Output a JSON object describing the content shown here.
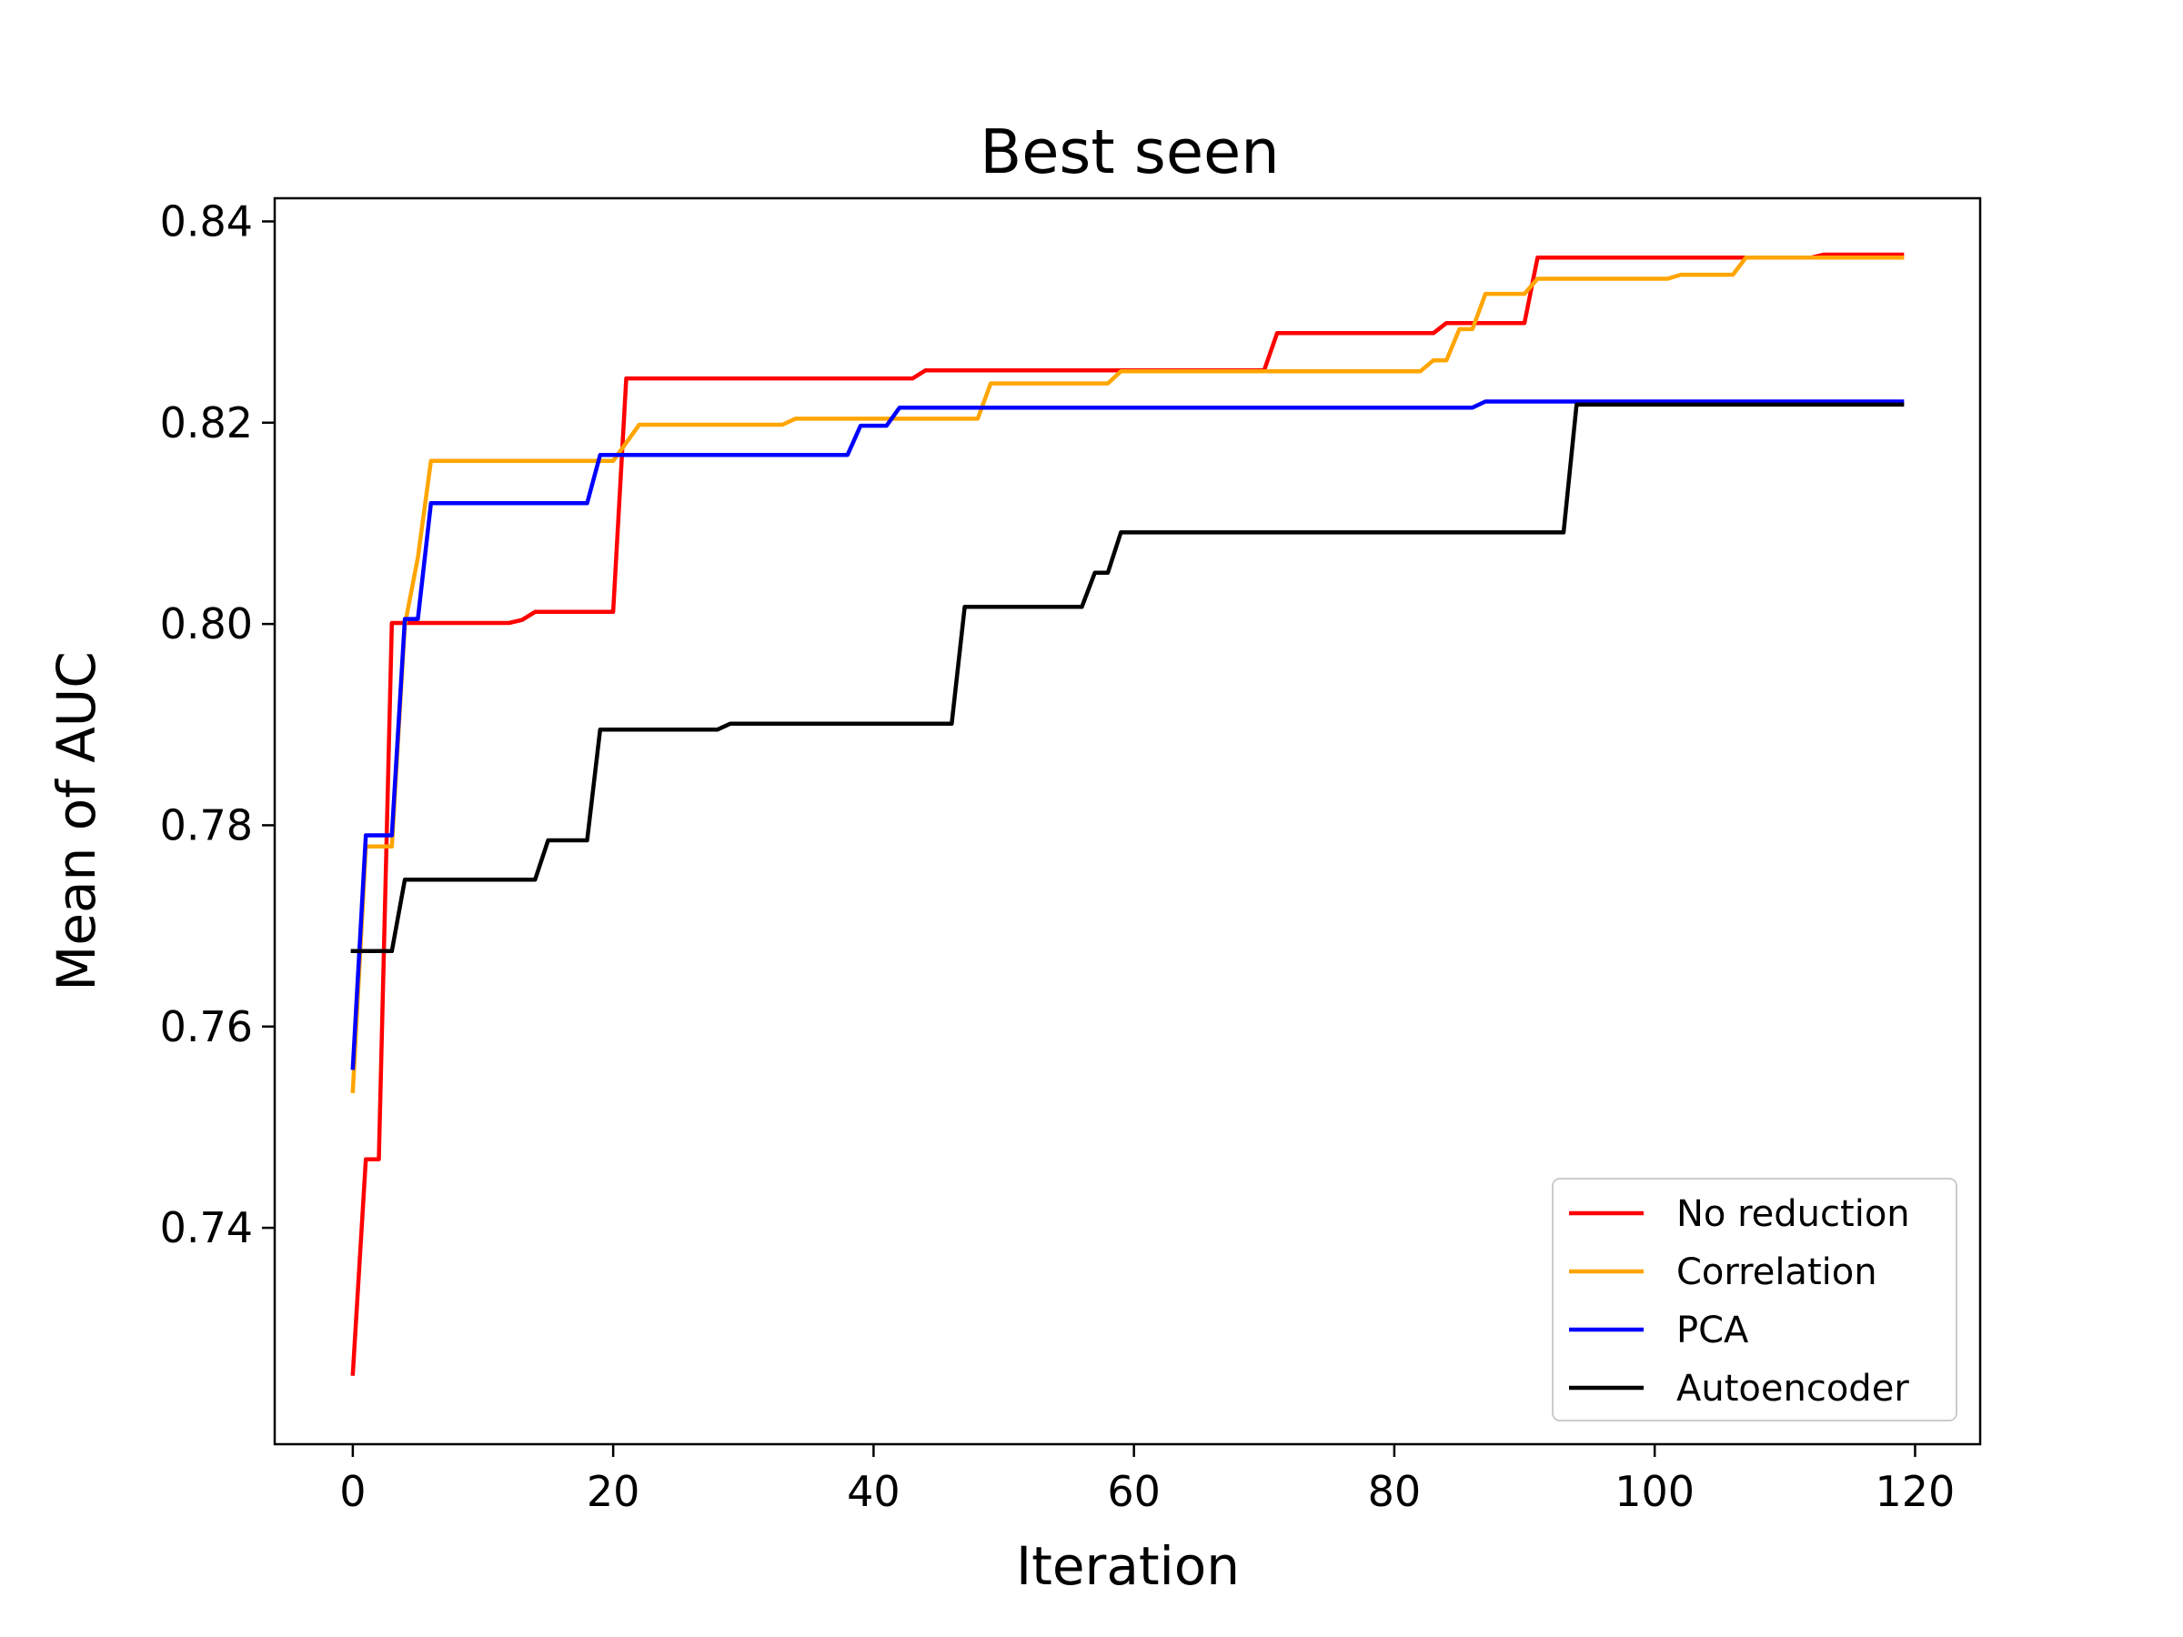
{
  "chart_data": {
    "type": "line",
    "title": "Best seen",
    "xlabel": "Iteration",
    "ylabel": "Mean of AUC",
    "xlim": [
      -6,
      125
    ],
    "ylim": [
      0.7185,
      0.8423
    ],
    "xticks": [
      0,
      20,
      40,
      60,
      80,
      100,
      120
    ],
    "yticks": [
      0.74,
      0.76,
      0.78,
      0.8,
      0.82,
      0.84
    ],
    "ytick_labels": [
      "0.74",
      "0.76",
      "0.78",
      "0.80",
      "0.82",
      "0.84"
    ],
    "grid": false,
    "legend_position": "lower-right",
    "series": [
      {
        "name": "No reduction",
        "color": "#ff0000",
        "points": [
          [
            0,
            0.7255
          ],
          [
            1,
            0.7468
          ],
          [
            2,
            0.7468
          ],
          [
            3,
            0.8001
          ],
          [
            12,
            0.8001
          ],
          [
            13,
            0.8004
          ],
          [
            14,
            0.8012
          ],
          [
            20,
            0.8012
          ],
          [
            21,
            0.8244
          ],
          [
            43,
            0.8244
          ],
          [
            44,
            0.8252
          ],
          [
            70,
            0.8252
          ],
          [
            71,
            0.8289
          ],
          [
            83,
            0.8289
          ],
          [
            84,
            0.8299
          ],
          [
            90,
            0.8299
          ],
          [
            91,
            0.8364
          ],
          [
            112,
            0.8364
          ],
          [
            113,
            0.8367
          ],
          [
            119,
            0.8367
          ]
        ]
      },
      {
        "name": "Correlation",
        "color": "#ffa500",
        "points": [
          [
            0,
            0.7536
          ],
          [
            1,
            0.7779
          ],
          [
            3,
            0.7779
          ],
          [
            4,
            0.7999
          ],
          [
            5,
            0.8066
          ],
          [
            6,
            0.8162
          ],
          [
            20,
            0.8162
          ],
          [
            22,
            0.8198
          ],
          [
            33,
            0.8198
          ],
          [
            34,
            0.8204
          ],
          [
            48,
            0.8204
          ],
          [
            49,
            0.8239
          ],
          [
            58,
            0.8239
          ],
          [
            59,
            0.8251
          ],
          [
            82,
            0.8251
          ],
          [
            83,
            0.8262
          ],
          [
            84,
            0.8262
          ],
          [
            85,
            0.8293
          ],
          [
            86,
            0.8293
          ],
          [
            87,
            0.8328
          ],
          [
            90,
            0.8328
          ],
          [
            91,
            0.8343
          ],
          [
            101,
            0.8343
          ],
          [
            102,
            0.8347
          ],
          [
            106,
            0.8347
          ],
          [
            107,
            0.8364
          ],
          [
            119,
            0.8364
          ]
        ]
      },
      {
        "name": "PCA",
        "color": "#0000ff",
        "points": [
          [
            0,
            0.7559
          ],
          [
            1,
            0.779
          ],
          [
            3,
            0.779
          ],
          [
            4,
            0.8005
          ],
          [
            5,
            0.8005
          ],
          [
            6,
            0.812
          ],
          [
            18,
            0.812
          ],
          [
            19,
            0.8168
          ],
          [
            38,
            0.8168
          ],
          [
            39,
            0.8197
          ],
          [
            41,
            0.8197
          ],
          [
            42,
            0.8215
          ],
          [
            86,
            0.8215
          ],
          [
            87,
            0.8221
          ],
          [
            119,
            0.8221
          ]
        ]
      },
      {
        "name": "Autoencoder",
        "color": "#000000",
        "points": [
          [
            0,
            0.7675
          ],
          [
            3,
            0.7675
          ],
          [
            4,
            0.7746
          ],
          [
            14,
            0.7746
          ],
          [
            15,
            0.7785
          ],
          [
            18,
            0.7785
          ],
          [
            19,
            0.7895
          ],
          [
            28,
            0.7895
          ],
          [
            29,
            0.7901
          ],
          [
            46,
            0.7901
          ],
          [
            47,
            0.8017
          ],
          [
            56,
            0.8017
          ],
          [
            57,
            0.8051
          ],
          [
            58,
            0.8051
          ],
          [
            59,
            0.8091
          ],
          [
            93,
            0.8091
          ],
          [
            94,
            0.8218
          ],
          [
            119,
            0.8218
          ]
        ]
      }
    ]
  }
}
